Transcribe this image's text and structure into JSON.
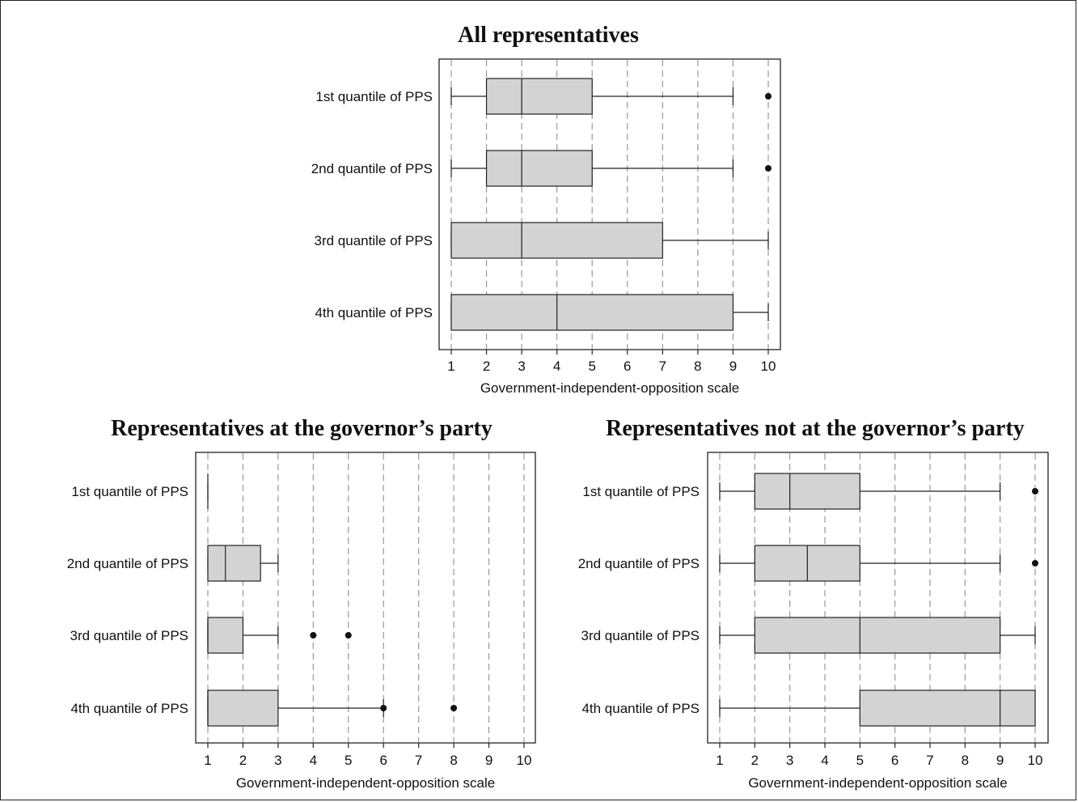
{
  "chart_data": [
    {
      "type": "box",
      "title": "All representatives",
      "xlabel": "Government-independent-opposition scale",
      "xlim": [
        1,
        10
      ],
      "xticks": [
        "1",
        "2",
        "3",
        "4",
        "5",
        "6",
        "7",
        "8",
        "9",
        "10"
      ],
      "grid": "vertical dashed",
      "categories": [
        "1st quantile of PPS",
        "2nd quantile of PPS",
        "3rd quantile of PPS",
        "4th quantile of PPS"
      ],
      "boxes": [
        {
          "whisker_low": 1,
          "q1": 2,
          "median": 3,
          "q3": 5,
          "whisker_high": 9,
          "outliers": [
            10
          ]
        },
        {
          "whisker_low": 1,
          "q1": 2,
          "median": 3,
          "q3": 5,
          "whisker_high": 9,
          "outliers": [
            10
          ]
        },
        {
          "whisker_low": 1,
          "q1": 1,
          "median": 3,
          "q3": 7,
          "whisker_high": 10,
          "outliers": []
        },
        {
          "whisker_low": 1,
          "q1": 1,
          "median": 4,
          "q3": 9,
          "whisker_high": 10,
          "outliers": []
        }
      ]
    },
    {
      "type": "box",
      "title": "Representatives at the governor’s party",
      "xlabel": "Government-independent-opposition scale",
      "xlim": [
        1,
        10
      ],
      "xticks": [
        "1",
        "2",
        "3",
        "4",
        "5",
        "6",
        "7",
        "8",
        "9",
        "10"
      ],
      "grid": "vertical dashed",
      "categories": [
        "1st quantile of PPS",
        "2nd quantile of PPS",
        "3rd quantile of PPS",
        "4th quantile of PPS"
      ],
      "boxes": [
        {
          "whisker_low": 1,
          "q1": 1,
          "median": 1,
          "q3": 1,
          "whisker_high": 1,
          "outliers": []
        },
        {
          "whisker_low": 1,
          "q1": 1,
          "median": 1.5,
          "q3": 2.5,
          "whisker_high": 3,
          "outliers": []
        },
        {
          "whisker_low": 1,
          "q1": 1,
          "median": 1,
          "q3": 2,
          "whisker_high": 3,
          "outliers": [
            4,
            5
          ]
        },
        {
          "whisker_low": 1,
          "q1": 1,
          "median": 1,
          "q3": 3,
          "whisker_high": 6,
          "outliers": [
            6,
            8
          ]
        }
      ]
    },
    {
      "type": "box",
      "title": "Representatives not at the governor’s party",
      "xlabel": "Government-independent-opposition scale",
      "xlim": [
        1,
        10
      ],
      "xticks": [
        "1",
        "2",
        "3",
        "4",
        "5",
        "6",
        "7",
        "8",
        "9",
        "10"
      ],
      "grid": "vertical dashed",
      "categories": [
        "1st quantile of PPS",
        "2nd quantile of PPS",
        "3rd quantile of PPS",
        "4th quantile of PPS"
      ],
      "boxes": [
        {
          "whisker_low": 1,
          "q1": 2,
          "median": 3,
          "q3": 5,
          "whisker_high": 9,
          "outliers": [
            10
          ]
        },
        {
          "whisker_low": 1,
          "q1": 2,
          "median": 3.5,
          "q3": 5,
          "whisker_high": 9,
          "outliers": [
            10
          ]
        },
        {
          "whisker_low": 1,
          "q1": 2,
          "median": 5,
          "q3": 9,
          "whisker_high": 10,
          "outliers": []
        },
        {
          "whisker_low": 1,
          "q1": 5,
          "median": 9,
          "q3": 10,
          "whisker_high": 10,
          "outliers": []
        }
      ]
    }
  ]
}
